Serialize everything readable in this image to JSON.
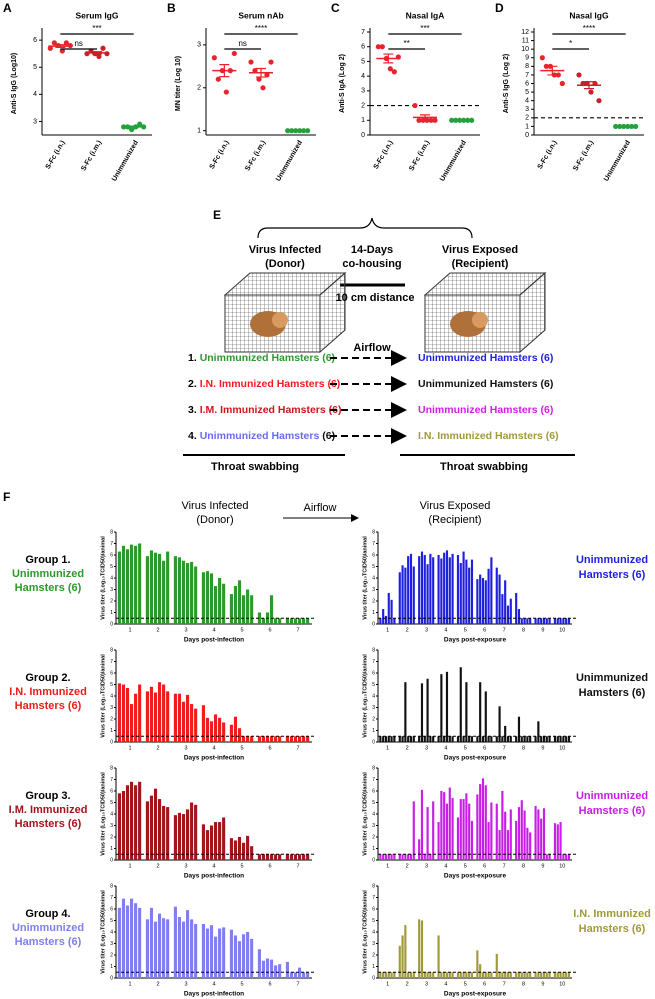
{
  "chart_data": [
    {
      "type": "dot",
      "panel_label": "A",
      "title": "Serum IgG",
      "ylabel": "Anti-S IgG (Log10)",
      "categories": [
        "S-Fc (i.n.)",
        "S-Fc (i.m.)",
        "Unimmunized"
      ],
      "colors": [
        "#e8232a",
        "#c8202a",
        "#22a33a"
      ],
      "points": [
        [
          5.7,
          5.9,
          5.8,
          5.6,
          5.9,
          5.8
        ],
        [
          5.5,
          5.6,
          5.5,
          5.4,
          5.7,
          5.5
        ],
        [
          2.8,
          2.8,
          2.7,
          2.8,
          2.9,
          2.8
        ]
      ],
      "means": [
        5.78,
        5.53,
        2.8
      ],
      "sems": [
        0.05,
        0.04,
        0.03
      ],
      "ylim": [
        2.5,
        6.3
      ],
      "yticks": [
        3,
        4,
        5,
        6
      ],
      "annotations": [
        "***",
        "ns"
      ]
    },
    {
      "type": "dot",
      "panel_label": "B",
      "title": "Serum nAb",
      "ylabel": "MN titer (Log 10)",
      "categories": [
        "S-Fc (i.n.)",
        "S-Fc (i.m.)",
        "Unimmunized"
      ],
      "colors": [
        "#e8232a",
        "#e8232a",
        "#22a33a"
      ],
      "points": [
        [
          2.7,
          2.2,
          2.4,
          1.9,
          2.4,
          2.8
        ],
        [
          2.6,
          2.4,
          2.2,
          2.0,
          2.3,
          2.6
        ],
        [
          1,
          1,
          1,
          1,
          1,
          1
        ]
      ],
      "means": [
        2.4,
        2.35,
        1
      ],
      "sems": [
        0.14,
        0.1,
        0
      ],
      "ylim": [
        0.9,
        3.3
      ],
      "yticks": [
        1,
        2,
        3
      ],
      "annotations": [
        "****",
        "ns"
      ]
    },
    {
      "type": "dot",
      "panel_label": "C",
      "title": "Nasal IgA",
      "ylabel": "Anti-S IgA (Log 2)",
      "categories": [
        "S-Fc (i.n.)",
        "S-Fc (i.m.)",
        "Unimmunized"
      ],
      "colors": [
        "#e8232a",
        "#e8232a",
        "#22a33a"
      ],
      "points": [
        [
          6.0,
          6.0,
          5.2,
          4.5,
          4.3,
          5.3
        ],
        [
          2,
          1,
          1,
          1,
          1,
          1
        ],
        [
          1,
          1,
          1,
          1,
          1,
          1
        ]
      ],
      "means": [
        5.2,
        1.2,
        1
      ],
      "sems": [
        0.3,
        0.17,
        0
      ],
      "ylim": [
        0,
        7
      ],
      "yticks": [
        0,
        1,
        2,
        3,
        4,
        5,
        6,
        7
      ],
      "threshold": 2,
      "annotations": [
        "***",
        "**"
      ]
    },
    {
      "type": "dot",
      "panel_label": "D",
      "title": "Nasal IgG",
      "ylabel": "Anti-S IgG (Log 2)",
      "categories": [
        "S-Fc (i.n.)",
        "S-Fc (i.m.)",
        "Unimmunized"
      ],
      "colors": [
        "#e8232a",
        "#c8202a",
        "#22a33a"
      ],
      "points": [
        [
          9,
          8,
          8,
          7,
          7,
          6
        ],
        [
          7,
          6,
          6,
          5,
          6,
          4
        ],
        [
          1,
          1,
          1,
          1,
          1,
          1
        ]
      ],
      "means": [
        7.5,
        5.8,
        1
      ],
      "sems": [
        0.5,
        0.4,
        0
      ],
      "ylim": [
        0,
        12
      ],
      "yticks": [
        0,
        1,
        2,
        3,
        4,
        5,
        6,
        7,
        8,
        9,
        10,
        11,
        12
      ],
      "threshold": 2,
      "annotations": [
        "****",
        "*"
      ]
    },
    {
      "type": "bar",
      "group": "Group 1.",
      "group_name": [
        "Unimmunized",
        "Hamsters (6)"
      ],
      "color": "#2b9a2b",
      "ylabel": "Virus titer (Log₁₀TCID50)/animal",
      "xlabel": "Days post-infection",
      "days": [
        1,
        2,
        3,
        4,
        5,
        6,
        7
      ],
      "values": [
        [
          6.3,
          6.8,
          6.5,
          6.9,
          6.8,
          7.0
        ],
        [
          5.9,
          6.4,
          6.2,
          6.1,
          5.5,
          6.3
        ],
        [
          5.9,
          5.8,
          5.5,
          5.3,
          5.4,
          5.0
        ],
        [
          4.5,
          4.6,
          4.4,
          3.3,
          4.0,
          3.5
        ],
        [
          2.6,
          3.3,
          3.8,
          2.5,
          3.0,
          2.5
        ],
        [
          1.0,
          0.5,
          1.0,
          2.5,
          0.5,
          0.5
        ],
        [
          0.5,
          0.5,
          0.5,
          0.5,
          0.5,
          0.5
        ]
      ],
      "ylim": [
        0,
        8
      ],
      "yticks": [
        0,
        1,
        2,
        3,
        4,
        5,
        6,
        7,
        8
      ],
      "threshold": 0.5
    },
    {
      "type": "bar",
      "group": "Group 2.",
      "group_name": [
        "I.N. Immunized",
        "Hamsters (6)"
      ],
      "color": "#f01c1c",
      "ylabel": "Virus titer (Log₁₀TCID50)/animal",
      "xlabel": "Days post-infection",
      "days": [
        1,
        2,
        3,
        4,
        5,
        6,
        7
      ],
      "values": [
        [
          5.1,
          5.0,
          4.7,
          3.3,
          4.2,
          5.0
        ],
        [
          4.4,
          4.8,
          4.3,
          5.2,
          5.0,
          4.4
        ],
        [
          4.2,
          4.2,
          3.5,
          4.1,
          3.3,
          2.9
        ],
        [
          3.2,
          2.1,
          1.8,
          2.4,
          2.1,
          1.7
        ],
        [
          1.5,
          2.2,
          1.2,
          0.5,
          0.5,
          0.5
        ],
        [
          0.5,
          0.5,
          0.5,
          0.5,
          0.5,
          0.5
        ],
        [
          0.5,
          0.5,
          0.5,
          0.5,
          0.5,
          0.5
        ]
      ],
      "ylim": [
        0,
        8
      ],
      "yticks": [
        0,
        1,
        2,
        3,
        4,
        5,
        6,
        7,
        8
      ],
      "threshold": 0.5
    },
    {
      "type": "bar",
      "group": "Group 3.",
      "group_name": [
        "I.M. Immunized",
        "Hamsters (6)"
      ],
      "color": "#a3141c",
      "ylabel": "Virus titer (Log₁₀TCID50)/animal",
      "xlabel": "Days post-infection",
      "days": [
        1,
        2,
        3,
        4,
        5,
        6,
        7
      ],
      "values": [
        [
          5.8,
          6.0,
          6.5,
          6.8,
          6.5,
          6.8
        ],
        [
          5.1,
          5.6,
          6.2,
          5.3,
          4.7,
          4.6
        ],
        [
          3.9,
          4.1,
          4.0,
          4.4,
          5.0,
          4.8
        ],
        [
          3.1,
          2.6,
          3.0,
          3.3,
          3.3,
          3.7
        ],
        [
          1.9,
          1.7,
          2.0,
          1.5,
          2.1,
          1.2
        ],
        [
          0.5,
          0.5,
          0.5,
          0.5,
          0.5,
          0.5
        ],
        [
          0.5,
          0.5,
          0.5,
          0.5,
          0.5,
          0.5
        ]
      ],
      "ylim": [
        0,
        8
      ],
      "yticks": [
        0,
        1,
        2,
        3,
        4,
        5,
        6,
        7,
        8
      ],
      "threshold": 0.5
    },
    {
      "type": "bar",
      "group": "Group 4.",
      "group_name": [
        "Unimmunized",
        "Hamsters (6)"
      ],
      "color": "#7f7ff0",
      "ylabel": "Virus titer (Log₁₀TCID50)/animal",
      "xlabel": "Days post-infection",
      "days": [
        1,
        2,
        3,
        4,
        5,
        6,
        7
      ],
      "values": [
        [
          6.1,
          6.9,
          6.3,
          6.9,
          6.5,
          6.1
        ],
        [
          5.1,
          6.1,
          4.9,
          5.6,
          5.2,
          5.1
        ],
        [
          6.2,
          5.3,
          4.9,
          5.9,
          5.1,
          4.7
        ],
        [
          4.7,
          4.3,
          4.6,
          3.6,
          4.3,
          4.4
        ],
        [
          4.2,
          3.7,
          3.2,
          3.8,
          4.0,
          3.4
        ],
        [
          2.5,
          1.5,
          1.7,
          1.6,
          1.1,
          1.2
        ],
        [
          1.4,
          0.5,
          0.5,
          0.9,
          0.5,
          0.5
        ]
      ],
      "ylim": [
        0,
        8
      ],
      "yticks": [
        0,
        1,
        2,
        3,
        4,
        5,
        6,
        7,
        8
      ],
      "threshold": 0.5
    },
    {
      "type": "bar",
      "side_label": [
        "Unimmunized",
        "Hamsters (6)"
      ],
      "color": "#1f1fe0",
      "ylabel": "Virus titer (Log₁₀TCID50)/animal",
      "xlabel": "Days post-exposure",
      "days": [
        1,
        2,
        3,
        4,
        5,
        6,
        7,
        8,
        9,
        10
      ],
      "values": [
        [
          0.5,
          1.3,
          0.7,
          2.7,
          2.1,
          0.5
        ],
        [
          4.5,
          5.1,
          4.9,
          5.9,
          6.1,
          5.0
        ],
        [
          5.9,
          6.3,
          6.0,
          5.2,
          6.1,
          5.8
        ],
        [
          6.0,
          5.7,
          6.2,
          6.4,
          5.8,
          6.1
        ],
        [
          6.0,
          5.3,
          6.3,
          5.6,
          4.9,
          5.6
        ],
        [
          3.9,
          4.3,
          4.0,
          3.8,
          4.8,
          5.8
        ],
        [
          4.9,
          4.3,
          2.6,
          3.8,
          1.6,
          2.2
        ],
        [
          2.7,
          1.3,
          0.5,
          0.5,
          0.5,
          0.5
        ],
        [
          0.5,
          0.5,
          0.5,
          0.5,
          0.5,
          0.5
        ],
        [
          0.5,
          0.5,
          0.5,
          0.5,
          0.5,
          0.5
        ]
      ],
      "ylim": [
        0,
        8
      ],
      "yticks": [
        0,
        1,
        2,
        3,
        4,
        5,
        6,
        7,
        8
      ],
      "threshold": 0.5
    },
    {
      "type": "bar",
      "side_label": [
        "Unimmunized",
        "Hamsters (6)"
      ],
      "color": "#111111",
      "ylabel": "Virus titer (Log₁₀TCID50)/animal",
      "xlabel": "Days post-exposure",
      "days": [
        1,
        2,
        3,
        4,
        5,
        6,
        7,
        8,
        9,
        10
      ],
      "values": [
        [
          0.5,
          0.5,
          0.5,
          0.5,
          0.5,
          0.5
        ],
        [
          0.5,
          0.5,
          5.2,
          0.5,
          0.5,
          0.5
        ],
        [
          0.5,
          5.1,
          0.5,
          5.5,
          0.5,
          0.5
        ],
        [
          0.5,
          5.9,
          0.5,
          6.1,
          0.5,
          0.5
        ],
        [
          0.5,
          6.5,
          0.5,
          5.2,
          0.5,
          0.5
        ],
        [
          0.5,
          5.2,
          0.5,
          4.4,
          0.5,
          0.5
        ],
        [
          0.5,
          3.1,
          0.5,
          1.4,
          0.5,
          0.5
        ],
        [
          0.5,
          2.2,
          0.5,
          0.5,
          0.5,
          0.5
        ],
        [
          0.5,
          1.8,
          0.5,
          0.5,
          0.5,
          0.5
        ],
        [
          0.5,
          0.5,
          0.5,
          0.5,
          0.5,
          0.5
        ]
      ],
      "ylim": [
        0,
        8
      ],
      "yticks": [
        0,
        1,
        2,
        3,
        4,
        5,
        6,
        7,
        8
      ],
      "threshold": 0.5
    },
    {
      "type": "bar",
      "side_label": [
        "Unimmunized",
        "Hamsters (6)"
      ],
      "color": "#c81ee6",
      "ylabel": "Virus titer (Log₁₀TCID50)/animal",
      "xlabel": "Days post-exposure",
      "days": [
        1,
        2,
        3,
        4,
        5,
        6,
        7,
        8,
        9,
        10
      ],
      "values": [
        [
          0.5,
          0.5,
          0.5,
          0.5,
          0.5,
          0.5
        ],
        [
          0.5,
          0.5,
          0.5,
          0.5,
          0.5,
          5.1
        ],
        [
          1.8,
          6.1,
          0.5,
          4.6,
          0.5,
          5.1
        ],
        [
          3.3,
          6.0,
          5.9,
          4.9,
          6.3,
          5.4
        ],
        [
          3.7,
          5.3,
          5.3,
          5.8,
          4.9,
          3.4
        ],
        [
          5.7,
          6.6,
          7.1,
          6.5,
          3.3,
          5.0
        ],
        [
          4.9,
          2.6,
          6.0,
          4.2,
          2.6,
          4.4
        ],
        [
          3.4,
          4.6,
          5.2,
          4.3,
          2.8,
          2.4
        ],
        [
          4.7,
          4.4,
          3.6,
          4.5,
          0.5,
          0.5
        ],
        [
          3.2,
          3.1,
          3.3,
          0.5,
          0.5,
          0.5
        ]
      ],
      "ylim": [
        0,
        8
      ],
      "yticks": [
        0,
        1,
        2,
        3,
        4,
        5,
        6,
        7,
        8
      ],
      "threshold": 0.5
    },
    {
      "type": "bar",
      "side_label": [
        "I.N. Immunized",
        "Hamsters (6)"
      ],
      "color": "#a09a3a",
      "ylabel": "Virus titer (Log₁₀TCID50)/animal",
      "xlabel": "Days post-exposure",
      "days": [
        1,
        2,
        3,
        4,
        5,
        6,
        7,
        8,
        9,
        10
      ],
      "values": [
        [
          0.5,
          0.5,
          0.5,
          0.5,
          0.5,
          0.5
        ],
        [
          2.8,
          3.7,
          4.6,
          0.5,
          0.5,
          0.5
        ],
        [
          5.1,
          5.0,
          0.5,
          0.5,
          0.5,
          0.5
        ],
        [
          3.7,
          0.5,
          0.5,
          0.5,
          0.5,
          0.5
        ],
        [
          0.5,
          0.5,
          0.5,
          0.5,
          0.5,
          0.5
        ],
        [
          2.4,
          1.2,
          0.5,
          0.5,
          0.5,
          0.5
        ],
        [
          2.1,
          0.5,
          0.5,
          0.5,
          0.5,
          0.5
        ],
        [
          0.5,
          0.5,
          0.5,
          0.5,
          0.5,
          0.5
        ],
        [
          0.5,
          0.5,
          0.5,
          0.5,
          0.5,
          0.5
        ],
        [
          0.5,
          0.5,
          0.5,
          0.5,
          0.5,
          0.5
        ]
      ],
      "ylim": [
        0,
        8
      ],
      "yticks": [
        0,
        1,
        2,
        3,
        4,
        5,
        6,
        7,
        8
      ],
      "threshold": 0.5
    }
  ],
  "diagram": {
    "panel_label": "E",
    "donor": [
      "Virus Infected",
      "(Donor)"
    ],
    "cohousing": [
      "14-Days",
      "co-housing"
    ],
    "recipient": [
      "Virus Exposed",
      "(Recipient)"
    ],
    "distance": "10 cm distance",
    "airflow": "Airflow",
    "rows": [
      {
        "num": "1.",
        "left": [
          {
            "text": "Unimmunized Hamsters (6)",
            "color": "#2b9a2b"
          }
        ],
        "right": [
          {
            "text": "Unimmunized Hamsters (6)",
            "color": "#1f1fe0"
          }
        ]
      },
      {
        "num": "2.",
        "left": [
          {
            "text": "I.N. Immunized Hamsters (6)",
            "color": "#f01c1c"
          }
        ],
        "right": [
          {
            "text": "Unimmunized Hamsters (6)",
            "color": "#111111"
          }
        ]
      },
      {
        "num": "3.",
        "left": [
          {
            "text": "I.M. Immunized Hamsters (6)",
            "color": "#d0141c"
          }
        ],
        "right": [
          {
            "text": "Unimmunized Hamsters (6)",
            "color": "#d21ee8"
          }
        ]
      },
      {
        "num": "4.",
        "left": [
          {
            "text": "Unimmunized Hamsters",
            "color": "#6b6bf0"
          },
          {
            "text": " (6)",
            "color": "#111111"
          }
        ],
        "right": [
          {
            "text": "I.N. Immunized Hamsters (6)",
            "color": "#a09a3a"
          }
        ]
      }
    ],
    "swab_left": "Throat swabbing",
    "swab_right": "Throat swabbing"
  },
  "figure_f": {
    "panel_label": "F",
    "donor": [
      "Virus Infected",
      "(Donor)"
    ],
    "airflow": "Airflow",
    "recipient": [
      "Virus Exposed",
      "(Recipient)"
    ]
  }
}
